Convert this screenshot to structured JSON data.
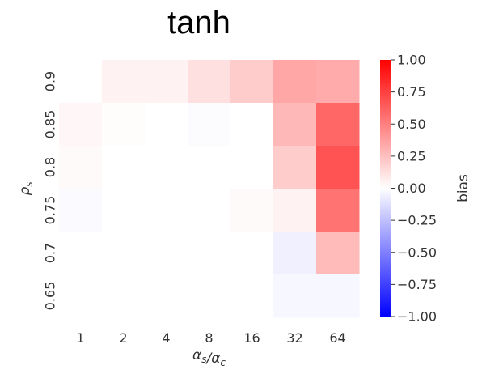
{
  "chart_data": {
    "type": "heatmap",
    "title": "tanh",
    "xlabel": "α_s/α_c",
    "ylabel": "ρ_s",
    "x": [
      "1",
      "2",
      "4",
      "8",
      "16",
      "32",
      "64"
    ],
    "y": [
      "0.9",
      "0.85",
      "0.8",
      "0.75",
      "0.7",
      "0.65"
    ],
    "values": [
      [
        0.0,
        0.05,
        0.05,
        0.12,
        0.2,
        0.35,
        0.33
      ],
      [
        0.03,
        0.01,
        0.0,
        -0.01,
        0.0,
        0.28,
        0.6
      ],
      [
        0.02,
        0.0,
        0.0,
        0.0,
        0.0,
        0.2,
        0.68
      ],
      [
        -0.02,
        0.0,
        0.0,
        0.0,
        0.02,
        0.05,
        0.55
      ],
      [
        0.0,
        0.0,
        0.0,
        0.0,
        0.0,
        -0.06,
        0.27
      ],
      [
        0.0,
        0.0,
        0.0,
        0.0,
        0.0,
        -0.03,
        -0.03
      ]
    ],
    "colorbar": {
      "label": "bias",
      "range": [
        -1.0,
        1.0
      ],
      "ticks": [
        "1.00",
        "0.75",
        "0.50",
        "0.25",
        "0.00",
        "−0.25",
        "−0.50",
        "−0.75",
        "−1.00"
      ],
      "colormap": "bwr",
      "colors": {
        "negative": "#0000ff",
        "zero": "#ffffff",
        "positive": "#ff0000"
      }
    },
    "grid": false
  }
}
